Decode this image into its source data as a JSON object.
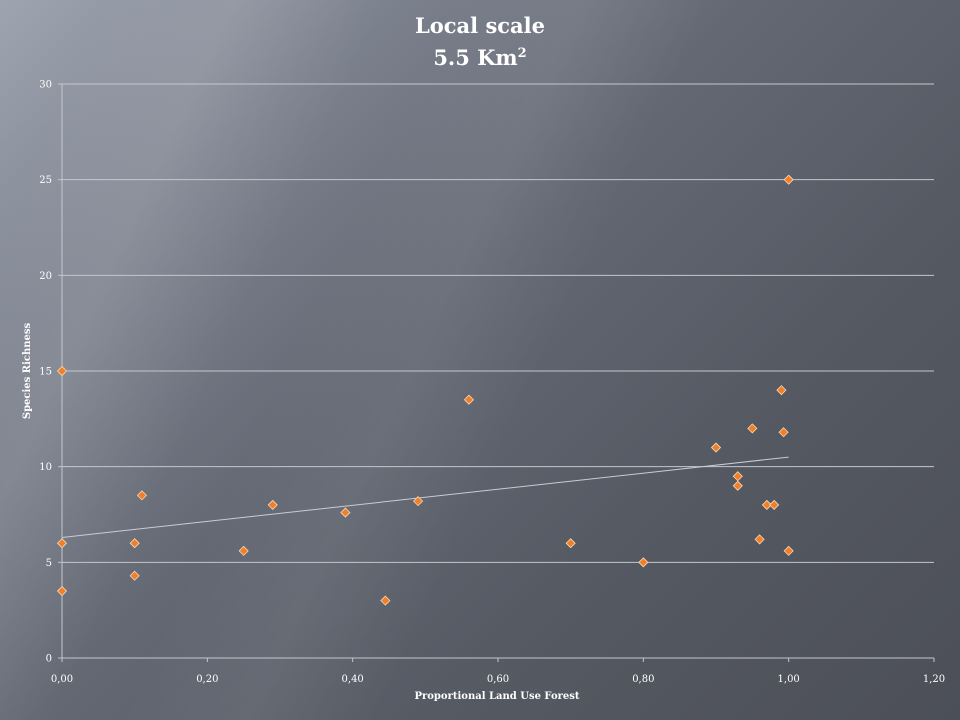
{
  "chart_data": {
    "type": "scatter",
    "title_line1": "Local scale",
    "title_line2_base": "5.5 Km",
    "title_line2_sup": "2",
    "xlabel": "Proportional  Land Use Forest",
    "ylabel": "Species Richness",
    "xlim": [
      0,
      1.2
    ],
    "ylim": [
      0,
      30
    ],
    "x_ticks": [
      0,
      0.2,
      0.4,
      0.6,
      0.8,
      1.0,
      1.2
    ],
    "x_tick_labels": [
      "0,00",
      "0,20",
      "0,40",
      "0,60",
      "0,80",
      "1,00",
      "1,20"
    ],
    "y_ticks": [
      0,
      5,
      10,
      15,
      20,
      25,
      30
    ],
    "y_tick_labels": [
      "0",
      "5",
      "10",
      "15",
      "20",
      "25",
      "30"
    ],
    "grid": "horizontal",
    "marker": "diamond",
    "colors": {
      "marker_fill": "#f07f2a",
      "marker_stroke": "#fbd9b8",
      "trendline": "#c9ccd2",
      "grid": "#c4c7cd"
    },
    "points": [
      {
        "x": 0.0,
        "y": 15.0
      },
      {
        "x": 0.0,
        "y": 6.0
      },
      {
        "x": 0.0,
        "y": 3.5
      },
      {
        "x": 0.1,
        "y": 6.0
      },
      {
        "x": 0.1,
        "y": 4.3
      },
      {
        "x": 0.11,
        "y": 8.5
      },
      {
        "x": 0.25,
        "y": 5.6
      },
      {
        "x": 0.29,
        "y": 8.0
      },
      {
        "x": 0.39,
        "y": 7.6
      },
      {
        "x": 0.445,
        "y": 3.0
      },
      {
        "x": 0.49,
        "y": 8.2
      },
      {
        "x": 0.56,
        "y": 13.5
      },
      {
        "x": 0.7,
        "y": 6.0
      },
      {
        "x": 0.8,
        "y": 5.0
      },
      {
        "x": 0.9,
        "y": 11.0
      },
      {
        "x": 0.93,
        "y": 9.5
      },
      {
        "x": 0.93,
        "y": 9.0
      },
      {
        "x": 0.95,
        "y": 12.0
      },
      {
        "x": 0.96,
        "y": 6.2
      },
      {
        "x": 0.97,
        "y": 8.0
      },
      {
        "x": 0.98,
        "y": 8.0
      },
      {
        "x": 0.99,
        "y": 14.0
      },
      {
        "x": 0.993,
        "y": 11.8
      },
      {
        "x": 1.0,
        "y": 25.0
      },
      {
        "x": 1.0,
        "y": 5.6
      }
    ],
    "trendline": {
      "x": [
        0.0,
        1.0
      ],
      "y": [
        6.3,
        10.5
      ]
    }
  }
}
